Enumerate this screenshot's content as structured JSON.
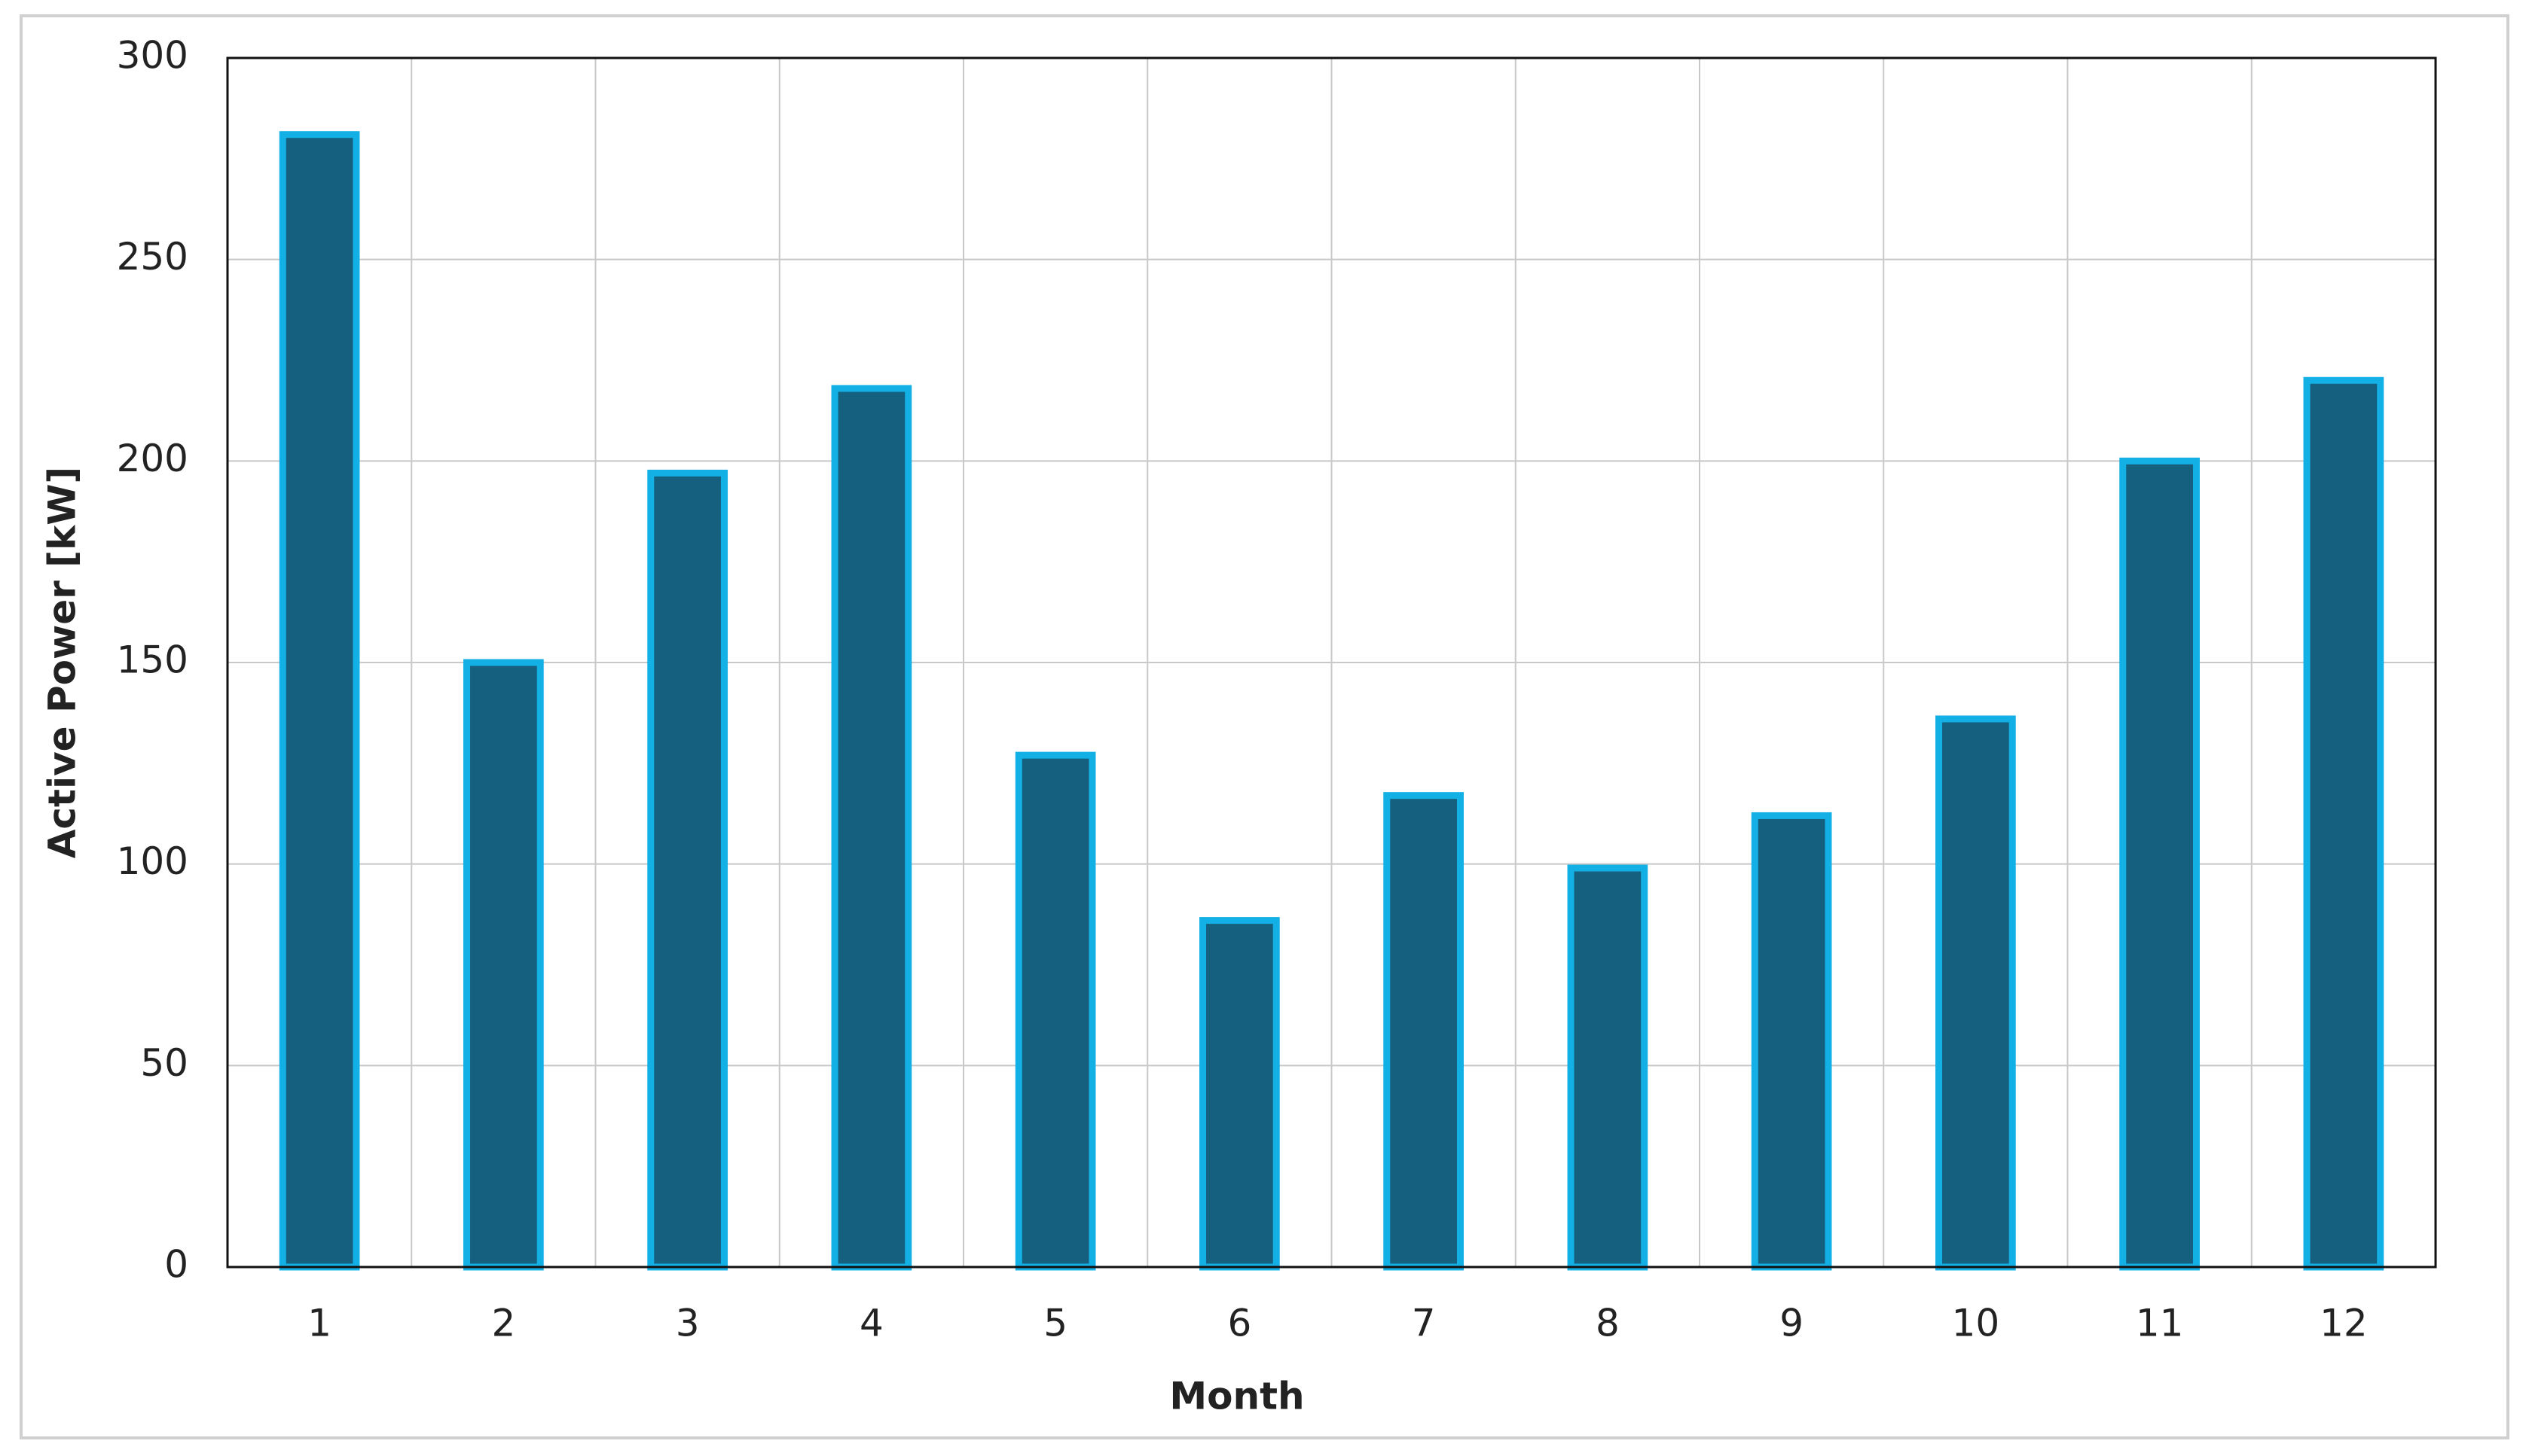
{
  "chart_data": {
    "type": "bar",
    "xlabel": "Month",
    "ylabel": "Active Power [kW]",
    "categories": [
      "1",
      "2",
      "3",
      "4",
      "5",
      "6",
      "7",
      "8",
      "9",
      "10",
      "11",
      "12"
    ],
    "values": [
      281,
      150,
      197,
      218,
      127,
      86,
      117,
      99,
      112,
      136,
      200,
      220
    ],
    "color": "#16607f",
    "edgecolor": "#13b0e6",
    "ylim": [
      0,
      300
    ],
    "yticks": [
      0,
      50,
      100,
      150,
      200,
      250,
      300
    ],
    "grid": true
  }
}
